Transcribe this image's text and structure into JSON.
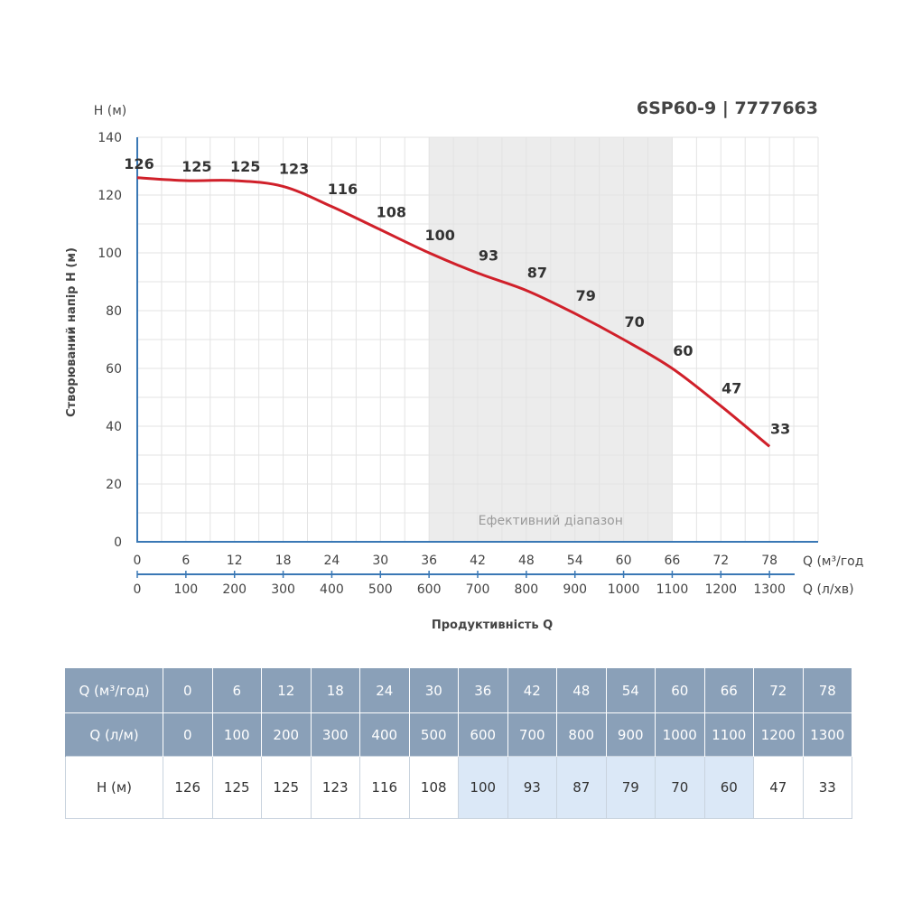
{
  "title": "6SP60-9 | 7777663",
  "chart_data": {
    "type": "line",
    "title": "6SP60-9 | 7777663",
    "ylabel": "Створюваний напір H (м)",
    "y_unit_label": "H (м)",
    "xlabel": "Продуктивність Q",
    "x_unit_label": "Q (м³/год",
    "x2_unit_label": "Q (л/хв)",
    "ylim": [
      0,
      140
    ],
    "yticks": [
      0,
      20,
      40,
      60,
      80,
      100,
      120,
      140
    ],
    "x": [
      0,
      6,
      12,
      18,
      24,
      30,
      36,
      42,
      48,
      54,
      60,
      66,
      72,
      78
    ],
    "x2": [
      0,
      100,
      200,
      300,
      400,
      500,
      600,
      700,
      800,
      900,
      1000,
      1100,
      1200,
      1300
    ],
    "series": [
      {
        "values": [
          126,
          125,
          125,
          123,
          116,
          108,
          100,
          93,
          87,
          79,
          70,
          60,
          47,
          33
        ]
      }
    ],
    "efficient_range": {
      "label": "Ефективний діапазон",
      "from": 36,
      "to": 66
    },
    "grid": true,
    "line_color": "#d0202a",
    "shade_color": "#ececec",
    "axis_color": "#3a78b5"
  },
  "table": {
    "row1_label": "Q (м³/год)",
    "row2_label": "Q (л/м)",
    "row3_label": "H (м)",
    "q_m3h": [
      "0",
      "6",
      "12",
      "18",
      "24",
      "30",
      "36",
      "42",
      "48",
      "54",
      "60",
      "66",
      "72",
      "78"
    ],
    "q_lpm": [
      "0",
      "100",
      "200",
      "300",
      "400",
      "500",
      "600",
      "700",
      "800",
      "900",
      "1000",
      "1100",
      "1200",
      "1300"
    ],
    "h": [
      "126",
      "125",
      "125",
      "123",
      "116",
      "108",
      "100",
      "93",
      "87",
      "79",
      "70",
      "60",
      "47",
      "33"
    ],
    "efficient_columns": [
      6,
      7,
      8,
      9,
      10,
      11
    ],
    "header_color": "#8aa0b8",
    "highlight_color": "#dbe8f7"
  }
}
